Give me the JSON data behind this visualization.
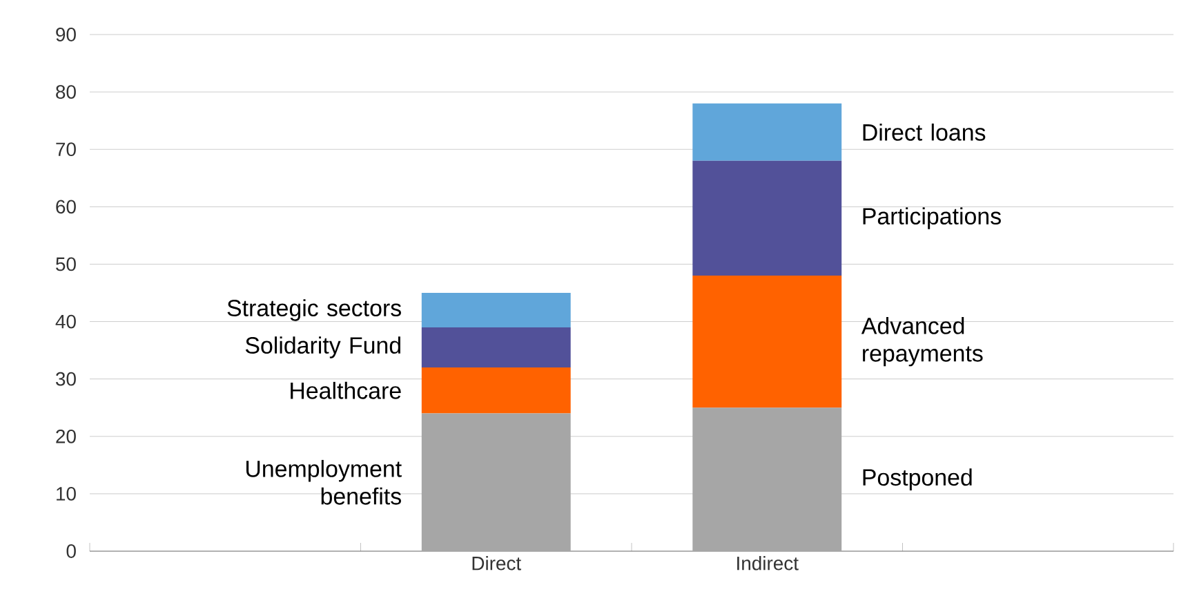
{
  "chart_data": {
    "type": "bar",
    "stacked": true,
    "categories": [
      null,
      "Direct",
      "Indirect",
      null
    ],
    "series": [
      {
        "color": "#a6a6a6",
        "values": [
          null,
          24,
          25,
          null
        ]
      },
      {
        "color": "#ff6200",
        "values": [
          null,
          8,
          23,
          null
        ]
      },
      {
        "color": "#525199",
        "values": [
          null,
          7,
          20,
          null
        ]
      },
      {
        "color": "#60a6da",
        "values": [
          null,
          6,
          10,
          null
        ]
      }
    ],
    "ylim": [
      0,
      90
    ],
    "yticks": [
      0,
      10,
      20,
      30,
      40,
      50,
      60,
      70,
      80,
      90
    ],
    "grid": "y",
    "annotations": [
      "Unemployment benefits",
      "Healthcare",
      "Solidarity Fund",
      "Strategic sectors",
      "Postponed",
      "Advanced repayments",
      "Participations",
      "Direct loans"
    ]
  }
}
